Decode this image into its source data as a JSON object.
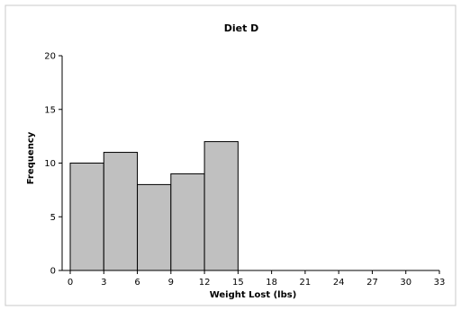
{
  "chart_data": {
    "type": "bar",
    "title": "Diet D",
    "xlabel": "Weight Lost (lbs)",
    "ylabel": "Frequency",
    "bins": [
      {
        "start": 0,
        "end": 3,
        "count": 10
      },
      {
        "start": 3,
        "end": 6,
        "count": 11
      },
      {
        "start": 6,
        "end": 9,
        "count": 8
      },
      {
        "start": 9,
        "end": 12,
        "count": 9
      },
      {
        "start": 12,
        "end": 15,
        "count": 12
      }
    ],
    "xlim": [
      0,
      33
    ],
    "ylim": [
      0,
      20
    ],
    "x_ticks": [
      0,
      3,
      6,
      9,
      12,
      15,
      18,
      21,
      24,
      27,
      30,
      33
    ],
    "y_ticks": [
      0,
      5,
      10,
      15,
      20
    ],
    "bar_color": "#c0c0c0",
    "grid": false
  }
}
